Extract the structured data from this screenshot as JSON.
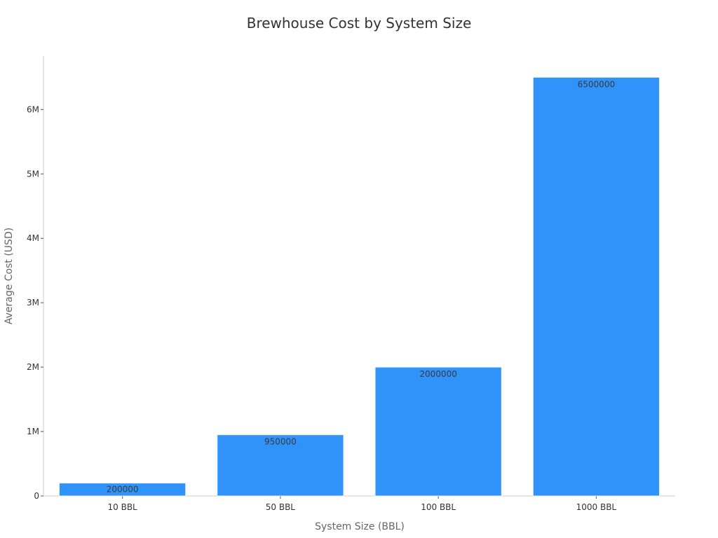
{
  "chart_data": {
    "type": "bar",
    "title": "Brewhouse Cost by System Size",
    "xlabel": "System Size (BBL)",
    "ylabel": "Average Cost (USD)",
    "categories": [
      "10 BBL",
      "50 BBL",
      "100 BBL",
      "1000 BBL"
    ],
    "values": [
      200000,
      950000,
      2000000,
      6500000
    ],
    "data_labels": [
      "200000",
      "950000",
      "2000000",
      "6500000"
    ],
    "ylim": [
      0,
      6830000
    ],
    "yticks": [
      0,
      1000000,
      2000000,
      3000000,
      4000000,
      5000000,
      6000000
    ],
    "ytick_labels": [
      "0",
      "1M",
      "2M",
      "3M",
      "4M",
      "5M",
      "6M"
    ],
    "bar_color": "#2f93f9",
    "grid": false,
    "legend": "none"
  }
}
